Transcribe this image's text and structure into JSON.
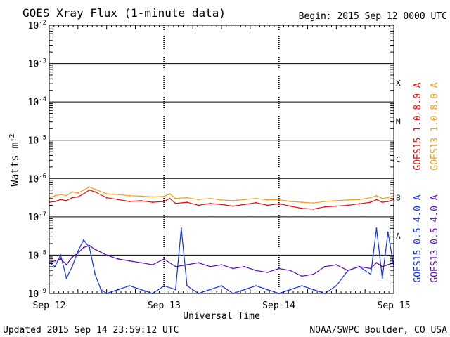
{
  "chart_data": {
    "type": "line",
    "title": "GOES Xray Flux (1-minute data)",
    "begin": "Begin:  2015 Sep 12 0000 UTC",
    "xlabel": "Universal Time",
    "ylabel": "Watts m",
    "ylabel_sup": "-2",
    "updated": "Updated 2015 Sep 14 23:59:12 UTC",
    "credit": "NOAA/SWPC Boulder, CO USA",
    "x_ticks": [
      "Sep 12",
      "Sep 13",
      "Sep 14",
      "Sep 15"
    ],
    "x_range_days": [
      0,
      3
    ],
    "y_scale": "log",
    "y_range": [
      1e-09,
      0.01
    ],
    "y_ticks": [
      {
        "base": "10",
        "exp": "-2"
      },
      {
        "base": "10",
        "exp": "-3"
      },
      {
        "base": "10",
        "exp": "-4"
      },
      {
        "base": "10",
        "exp": "-5"
      },
      {
        "base": "10",
        "exp": "-6"
      },
      {
        "base": "10",
        "exp": "-7"
      },
      {
        "base": "10",
        "exp": "-8"
      },
      {
        "base": "10",
        "exp": "-9"
      }
    ],
    "flare_classes": [
      {
        "label": "X",
        "exp": -3.5
      },
      {
        "label": "M",
        "exp": -4.5
      },
      {
        "label": "C",
        "exp": -5.5
      },
      {
        "label": "B",
        "exp": -6.5
      },
      {
        "label": "A",
        "exp": -7.5
      }
    ],
    "series": [
      {
        "name": "GOES15 1.0-8.0 A",
        "color": "#e01010",
        "x": [
          0,
          0.05,
          0.1,
          0.15,
          0.2,
          0.25,
          0.3,
          0.35,
          0.4,
          0.5,
          0.6,
          0.7,
          0.8,
          0.9,
          1.0,
          1.05,
          1.1,
          1.2,
          1.3,
          1.4,
          1.5,
          1.6,
          1.7,
          1.8,
          1.9,
          2.0,
          2.1,
          2.2,
          2.3,
          2.4,
          2.5,
          2.6,
          2.7,
          2.8,
          2.85,
          2.9,
          2.95,
          3.0
        ],
        "exp": [
          -6.62,
          -6.6,
          -6.55,
          -6.58,
          -6.5,
          -6.48,
          -6.4,
          -6.3,
          -6.35,
          -6.5,
          -6.55,
          -6.6,
          -6.58,
          -6.62,
          -6.6,
          -6.52,
          -6.65,
          -6.62,
          -6.7,
          -6.65,
          -6.68,
          -6.72,
          -6.68,
          -6.63,
          -6.7,
          -6.66,
          -6.72,
          -6.78,
          -6.8,
          -6.74,
          -6.72,
          -6.7,
          -6.66,
          -6.62,
          -6.55,
          -6.62,
          -6.6,
          -6.55
        ]
      },
      {
        "name": "GOES13 1.0-8.0 A",
        "color": "#f0a020",
        "x": [
          0,
          0.05,
          0.1,
          0.15,
          0.2,
          0.25,
          0.3,
          0.35,
          0.4,
          0.5,
          0.6,
          0.7,
          0.8,
          0.9,
          1.0,
          1.05,
          1.1,
          1.2,
          1.3,
          1.4,
          1.5,
          1.6,
          1.7,
          1.8,
          1.9,
          2.0,
          2.1,
          2.2,
          2.3,
          2.4,
          2.5,
          2.6,
          2.7,
          2.8,
          2.85,
          2.9,
          2.95,
          3.0
        ],
        "exp": [
          -6.5,
          -6.45,
          -6.42,
          -6.45,
          -6.35,
          -6.38,
          -6.3,
          -6.22,
          -6.28,
          -6.4,
          -6.42,
          -6.45,
          -6.46,
          -6.48,
          -6.47,
          -6.4,
          -6.52,
          -6.5,
          -6.55,
          -6.52,
          -6.56,
          -6.58,
          -6.55,
          -6.52,
          -6.56,
          -6.55,
          -6.6,
          -6.62,
          -6.64,
          -6.6,
          -6.58,
          -6.56,
          -6.55,
          -6.5,
          -6.45,
          -6.52,
          -6.5,
          -6.45
        ]
      },
      {
        "name": "GOES15 0.5-4.0 A",
        "color": "#1030f0",
        "x": [
          0,
          0.05,
          0.1,
          0.15,
          0.2,
          0.25,
          0.3,
          0.35,
          0.4,
          0.45,
          0.5,
          0.6,
          0.7,
          0.8,
          0.9,
          1.0,
          1.1,
          1.15,
          1.2,
          1.3,
          1.4,
          1.5,
          1.6,
          1.7,
          1.8,
          1.9,
          2.0,
          2.1,
          2.2,
          2.3,
          2.4,
          2.5,
          2.6,
          2.7,
          2.8,
          2.85,
          2.9,
          2.95,
          3.0
        ],
        "exp": [
          -8.2,
          -8.3,
          -8.0,
          -8.6,
          -8.3,
          -7.9,
          -7.6,
          -7.8,
          -8.5,
          -8.9,
          -9.0,
          -8.9,
          -8.8,
          -8.9,
          -9.0,
          -8.8,
          -8.9,
          -7.3,
          -8.8,
          -9.0,
          -8.9,
          -8.8,
          -9.0,
          -8.9,
          -8.8,
          -8.9,
          -9.0,
          -8.9,
          -8.8,
          -8.9,
          -9.0,
          -8.8,
          -8.4,
          -8.3,
          -8.5,
          -7.3,
          -8.6,
          -7.4,
          -8.3
        ]
      },
      {
        "name": "GOES13 0.5-4.0 A",
        "color": "#5a10b0",
        "x": [
          0,
          0.05,
          0.1,
          0.15,
          0.2,
          0.25,
          0.3,
          0.35,
          0.4,
          0.5,
          0.6,
          0.7,
          0.8,
          0.9,
          1.0,
          1.1,
          1.2,
          1.3,
          1.4,
          1.5,
          1.6,
          1.7,
          1.8,
          1.9,
          2.0,
          2.1,
          2.2,
          2.3,
          2.4,
          2.5,
          2.6,
          2.7,
          2.8,
          2.85,
          2.9,
          2.95,
          3.0
        ],
        "exp": [
          -8.2,
          -8.15,
          -8.1,
          -8.25,
          -8.05,
          -7.95,
          -7.8,
          -7.75,
          -7.85,
          -8.0,
          -8.1,
          -8.15,
          -8.2,
          -8.25,
          -8.1,
          -8.3,
          -8.25,
          -8.2,
          -8.3,
          -8.25,
          -8.35,
          -8.3,
          -8.4,
          -8.45,
          -8.35,
          -8.4,
          -8.55,
          -8.5,
          -8.3,
          -8.25,
          -8.4,
          -8.3,
          -8.35,
          -8.2,
          -8.3,
          -8.25,
          -8.2
        ]
      }
    ]
  }
}
